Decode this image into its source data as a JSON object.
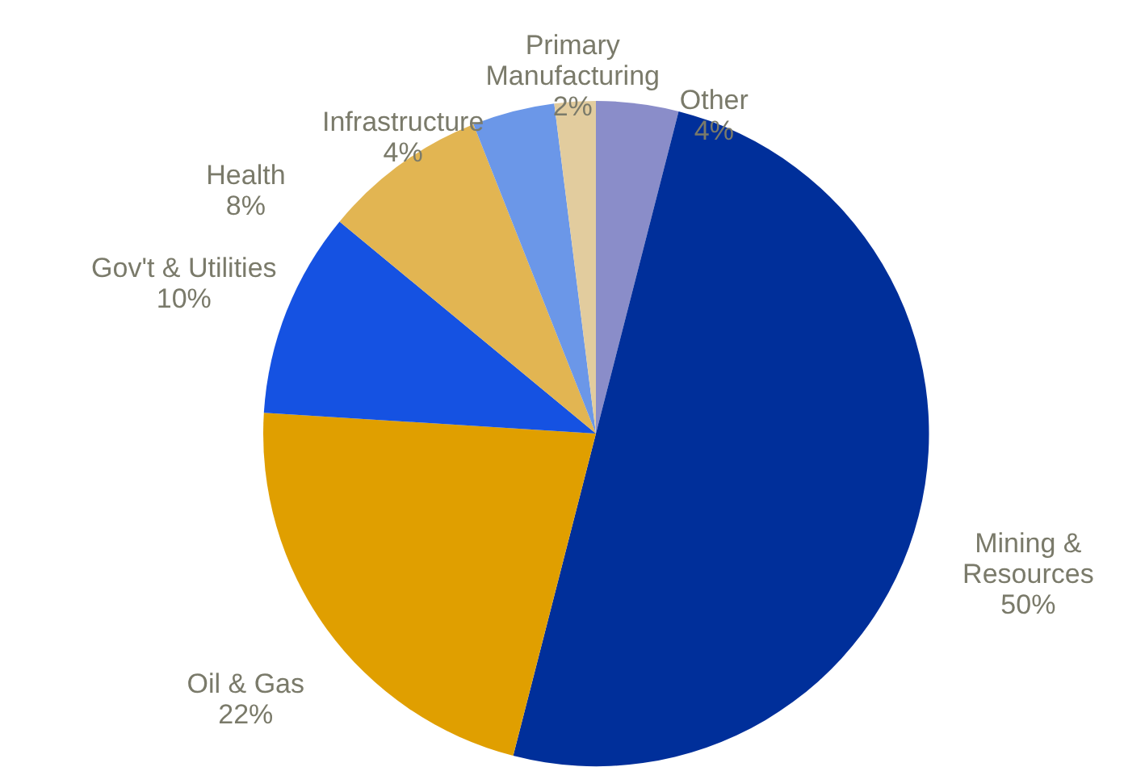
{
  "chart_data": {
    "type": "pie",
    "categories": [
      "Other",
      "Mining & Resources",
      "Oil & Gas",
      "Gov't & Utilities",
      "Health",
      "Infrastructure",
      "Primary Manufacturing"
    ],
    "values": [
      4,
      50,
      22,
      10,
      8,
      4,
      2
    ],
    "value_labels": [
      "4%",
      "50%",
      "22%",
      "10%",
      "8%",
      "4%",
      "2%"
    ],
    "colors": [
      "#8a8dc9",
      "#002f9a",
      "#e09f00",
      "#1552e2",
      "#e2b552",
      "#6b97e8",
      "#e2cc9e"
    ]
  }
}
